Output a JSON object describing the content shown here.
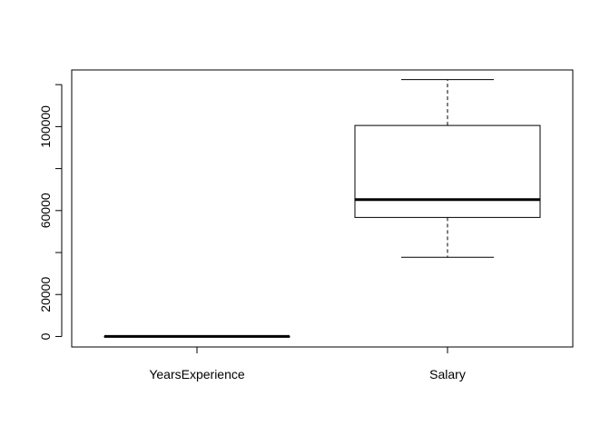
{
  "chart_data": {
    "type": "boxplot",
    "title": "",
    "xlabel": "",
    "ylabel": "",
    "categories": [
      "YearsExperience",
      "Salary"
    ],
    "boxes": [
      {
        "name": "YearsExperience",
        "min": 1.1,
        "q1": 3.2,
        "median": 4.7,
        "q3": 7.7,
        "max": 10.5
      },
      {
        "name": "Salary",
        "min": 37731,
        "q1": 56720,
        "median": 65237,
        "q3": 100544,
        "max": 122391
      }
    ],
    "ylim": [
      -5000,
      127000
    ],
    "yticks": [
      0,
      20000,
      40000,
      60000,
      80000,
      100000,
      120000
    ],
    "ytick_labels": [
      "0",
      "20000",
      "",
      "60000",
      "",
      "100000",
      ""
    ],
    "grid": false,
    "colors": {
      "axis": "#000000",
      "box_fill": "#ffffff",
      "median": "#000000"
    }
  }
}
